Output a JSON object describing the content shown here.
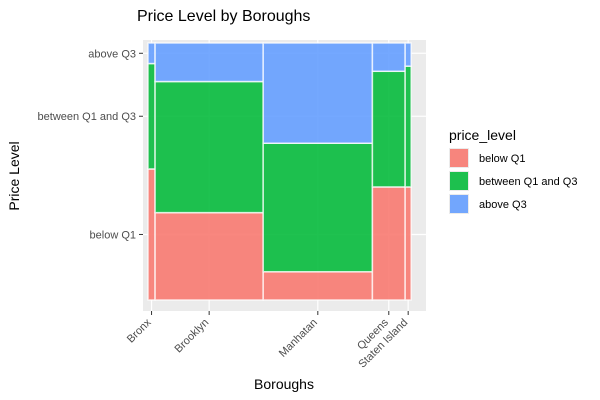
{
  "chart_data": {
    "type": "mosaic",
    "title": "Price Level by Boroughs",
    "xlabel": "Boroughs",
    "ylabel": "Price Level",
    "categories": [
      "Bronx",
      "Brooklyn",
      "Manhatan",
      "Queens",
      "Staten Island"
    ],
    "category_share": [
      0.026,
      0.396,
      0.4,
      0.12,
      0.022
    ],
    "levels": [
      "below Q1",
      "between Q1 and Q3",
      "above Q3"
    ],
    "shares": {
      "Bronx": [
        0.51,
        0.41,
        0.08
      ],
      "Brooklyn": [
        0.34,
        0.51,
        0.15
      ],
      "Manhatan": [
        0.11,
        0.5,
        0.39
      ],
      "Queens": [
        0.44,
        0.45,
        0.11
      ],
      "Staten Island": [
        0.44,
        0.47,
        0.09
      ]
    },
    "y_tick_labels": [
      "below Q1",
      "between Q1 and Q3",
      "above Q3"
    ],
    "legend": {
      "title": "price_level",
      "placement": "right",
      "entries": [
        {
          "label": "below Q1",
          "color": "#F8766D"
        },
        {
          "label": "between Q1 and Q3",
          "color": "#00BA38"
        },
        {
          "label": "above Q3",
          "color": "#619CFF"
        }
      ]
    },
    "colors": {
      "below Q1": "#F8766D",
      "between Q1 and Q3": "#00BA38",
      "above Q3": "#619CFF"
    },
    "panel_background": "#EBEBEB",
    "grid": true
  }
}
